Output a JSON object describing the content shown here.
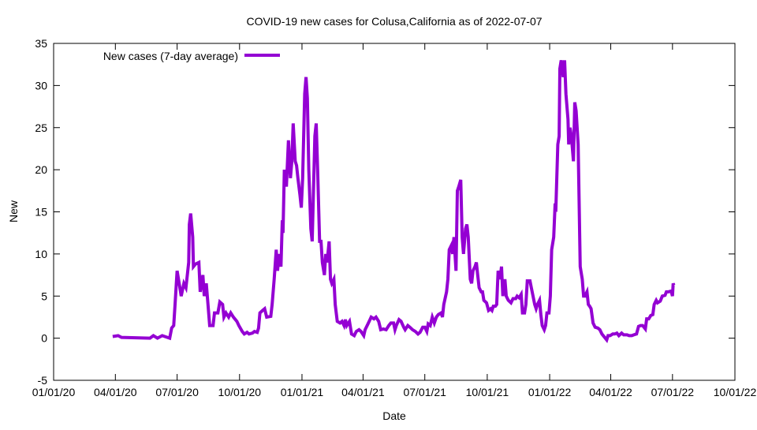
{
  "chart_data": {
    "type": "line",
    "title": "COVID-19 new cases for Colusa,California as of 2022-07-07",
    "xlabel": "Date",
    "ylabel": "New",
    "ylim": [
      -5,
      35
    ],
    "yticks": [
      -5,
      0,
      5,
      10,
      15,
      20,
      25,
      30,
      35
    ],
    "x_origin": "2020-01-01",
    "xlim_days": [
      0,
      1004
    ],
    "xticks": [
      {
        "label": "01/01/20",
        "day": 0
      },
      {
        "label": "04/01/20",
        "day": 91
      },
      {
        "label": "07/01/20",
        "day": 182
      },
      {
        "label": "10/01/20",
        "day": 274
      },
      {
        "label": "01/01/21",
        "day": 366
      },
      {
        "label": "04/01/21",
        "day": 456
      },
      {
        "label": "07/01/21",
        "day": 547
      },
      {
        "label": "10/01/21",
        "day": 639
      },
      {
        "label": "01/01/22",
        "day": 731
      },
      {
        "label": "04/01/22",
        "day": 821
      },
      {
        "label": "07/01/22",
        "day": 912
      },
      {
        "label": "10/01/22",
        "day": 1004
      }
    ],
    "grid": false,
    "legend_position": "top-left",
    "series": [
      {
        "name": "New cases (7-day average)",
        "color": "#9400D3",
        "days": [
          87,
          95,
          100,
          142,
          147,
          153,
          160,
          171,
          174,
          177,
          179,
          182,
          186,
          188,
          192,
          195,
          199,
          200,
          202,
          205,
          206,
          209,
          214,
          216,
          220,
          222,
          225,
          228,
          230,
          235,
          237,
          242,
          245,
          249,
          251,
          254,
          258,
          261,
          265,
          270,
          273,
          278,
          281,
          285,
          288,
          293,
          296,
          300,
          302,
          304,
          308,
          311,
          314,
          320,
          322,
          325,
          328,
          330,
          332,
          335,
          337,
          338,
          340,
          343,
          346,
          349,
          351,
          353,
          356,
          358,
          360,
          363,
          365,
          367,
          370,
          372,
          374,
          376,
          379,
          381,
          385,
          387,
          389,
          392,
          394,
          396,
          399,
          401,
          403,
          406,
          408,
          410,
          413,
          415,
          418,
          422,
          425,
          428,
          430,
          432,
          436,
          439,
          443,
          446,
          450,
          453,
          457,
          459,
          462,
          465,
          468,
          472,
          475,
          479,
          482,
          486,
          490,
          494,
          497,
          501,
          503,
          505,
          509,
          512,
          516,
          518,
          522,
          525,
          529,
          533,
          537,
          540,
          544,
          547,
          550,
          552,
          555,
          558,
          561,
          564,
          567,
          571,
          573,
          575,
          579,
          581,
          583,
          586,
          588,
          590,
          593,
          595,
          597,
          600,
          602,
          604,
          607,
          609,
          611,
          614,
          616,
          618,
          621,
          623,
          625,
          627,
          630,
          632,
          634,
          638,
          641,
          644,
          646,
          648,
          651,
          653,
          655,
          658,
          660,
          662,
          665,
          667,
          670,
          674,
          677,
          681,
          683,
          686,
          689,
          691,
          694,
          696,
          698,
          702,
          704,
          707,
          709,
          711,
          713,
          716,
          718,
          720,
          723,
          725,
          727,
          730,
          732,
          734,
          737,
          739,
          740,
          743,
          745,
          746,
          748,
          751,
          753,
          755,
          758,
          759,
          761,
          763,
          766,
          768,
          770,
          773,
          776,
          779,
          781,
          783,
          786,
          788,
          790,
          792,
          795,
          798,
          802,
          805,
          808,
          811,
          815,
          817,
          820,
          824,
          827,
          830,
          833,
          837,
          840,
          845,
          848,
          852,
          855,
          859,
          862,
          865,
          868,
          872,
          874,
          877,
          880,
          883,
          885,
          888,
          890,
          894,
          897,
          901,
          903,
          906,
          910,
          912,
          913,
          914
        ],
        "values": [
          0.2,
          0.3,
          0.1,
          0.0,
          0.3,
          0.0,
          0.3,
          0.0,
          1.2,
          1.5,
          4.0,
          8.0,
          6.0,
          5.0,
          6.5,
          6.0,
          9.0,
          13.5,
          14.8,
          12.0,
          8.5,
          8.8,
          9.0,
          5.5,
          7.5,
          5.0,
          6.5,
          3.5,
          1.5,
          1.5,
          3.0,
          3.0,
          4.3,
          4.0,
          2.5,
          3.0,
          2.5,
          3.0,
          2.5,
          2.0,
          1.5,
          0.8,
          0.5,
          0.7,
          0.5,
          0.6,
          0.8,
          0.7,
          1.2,
          3.0,
          3.3,
          3.5,
          2.5,
          2.6,
          4.0,
          7.0,
          10.5,
          8.0,
          10.0,
          8.5,
          14.0,
          12.5,
          20.0,
          18.0,
          23.5,
          19.0,
          21.0,
          25.5,
          21.0,
          20.5,
          19.0,
          17.0,
          15.5,
          19.0,
          29.0,
          31.0,
          28.5,
          20.0,
          13.0,
          11.5,
          24.0,
          25.5,
          20.0,
          11.5,
          11.5,
          9.0,
          7.5,
          10.0,
          9.0,
          11.5,
          7.0,
          6.5,
          7.0,
          4.0,
          2.0,
          1.8,
          2.0,
          1.5,
          2.2,
          1.5,
          2.0,
          0.5,
          0.3,
          0.8,
          1.0,
          0.8,
          0.3,
          1.0,
          1.5,
          2.0,
          2.5,
          2.3,
          2.5,
          2.0,
          1.0,
          1.1,
          1.0,
          1.5,
          1.8,
          1.8,
          1.0,
          1.5,
          2.2,
          2.0,
          1.3,
          1.0,
          1.5,
          1.3,
          1.0,
          0.8,
          0.5,
          0.7,
          1.3,
          1.3,
          0.8,
          1.7,
          1.5,
          2.5,
          1.8,
          2.5,
          2.8,
          3.0,
          2.5,
          4.0,
          5.5,
          7.0,
          10.5,
          11.0,
          10.0,
          12.0,
          8.0,
          17.5,
          18.0,
          18.8,
          12.0,
          10.0,
          13.0,
          13.5,
          12.0,
          7.0,
          6.5,
          8.0,
          8.5,
          9.0,
          7.5,
          6.0,
          5.5,
          5.5,
          4.5,
          4.2,
          3.3,
          3.5,
          3.3,
          3.8,
          3.8,
          4.0,
          8.0,
          7.0,
          8.5,
          5.0,
          7.0,
          5.0,
          4.5,
          4.2,
          4.7,
          4.7,
          5.0,
          4.8,
          5.2,
          3.0,
          3.0,
          4.0,
          6.8,
          6.8,
          6.0,
          4.8,
          4.0,
          3.5,
          4.0,
          4.5,
          2.8,
          1.5,
          1.0,
          1.5,
          3.0,
          3.0,
          5.0,
          10.5,
          12.0,
          16.0,
          15.0,
          23.0,
          24.0,
          32.0,
          33.0,
          31.0,
          33.0,
          29.0,
          26.0,
          23.0,
          25.0,
          24.0,
          21.0,
          28.0,
          27.0,
          23.0,
          8.5,
          7.0,
          5.0,
          5.0,
          5.5,
          4.0,
          3.8,
          3.5,
          1.8,
          1.3,
          1.2,
          1.0,
          0.5,
          0.2,
          -0.2,
          0.3,
          0.3,
          0.5,
          0.5,
          0.6,
          0.3,
          0.6,
          0.4,
          0.4,
          0.3,
          0.3,
          0.4,
          0.5,
          1.4,
          1.5,
          1.5,
          1.1,
          2.3,
          2.3,
          2.7,
          2.8,
          4.0,
          4.5,
          4.2,
          4.4,
          5.0,
          5.1,
          5.5,
          5.5,
          5.6,
          5.0,
          6.5,
          6.3
        ]
      }
    ]
  }
}
